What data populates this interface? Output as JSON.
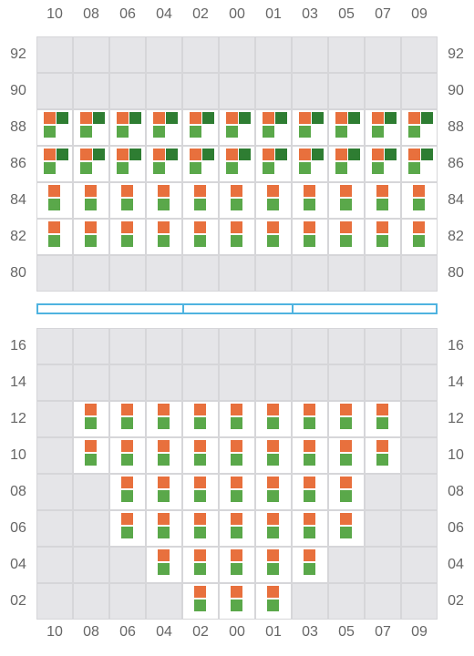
{
  "columns": [
    "10",
    "08",
    "06",
    "04",
    "02",
    "00",
    "01",
    "03",
    "05",
    "07",
    "09"
  ],
  "top_block": {
    "rows": [
      "92",
      "90",
      "88",
      "86",
      "84",
      "82",
      "80"
    ],
    "cells": [
      "00000000000",
      "00000000000",
      "33333333333",
      "33333333333",
      "11111111111",
      "11111111111",
      "00000000000"
    ]
  },
  "bottom_block": {
    "rows": [
      "16",
      "14",
      "12",
      "10",
      "08",
      "06",
      "04",
      "02"
    ],
    "cells": [
      "00000000000",
      "00000000000",
      "01111111110",
      "01111111110",
      "00111111100",
      "00111111100",
      "00011111000",
      "00001110000"
    ]
  },
  "divider_segments": 3,
  "colors": {
    "orange": "#e8703d",
    "green": "#5aa84a",
    "dark_green": "#2e7d32",
    "empty_cell": "#e5e5e8",
    "divider": "#4fb3e0"
  }
}
